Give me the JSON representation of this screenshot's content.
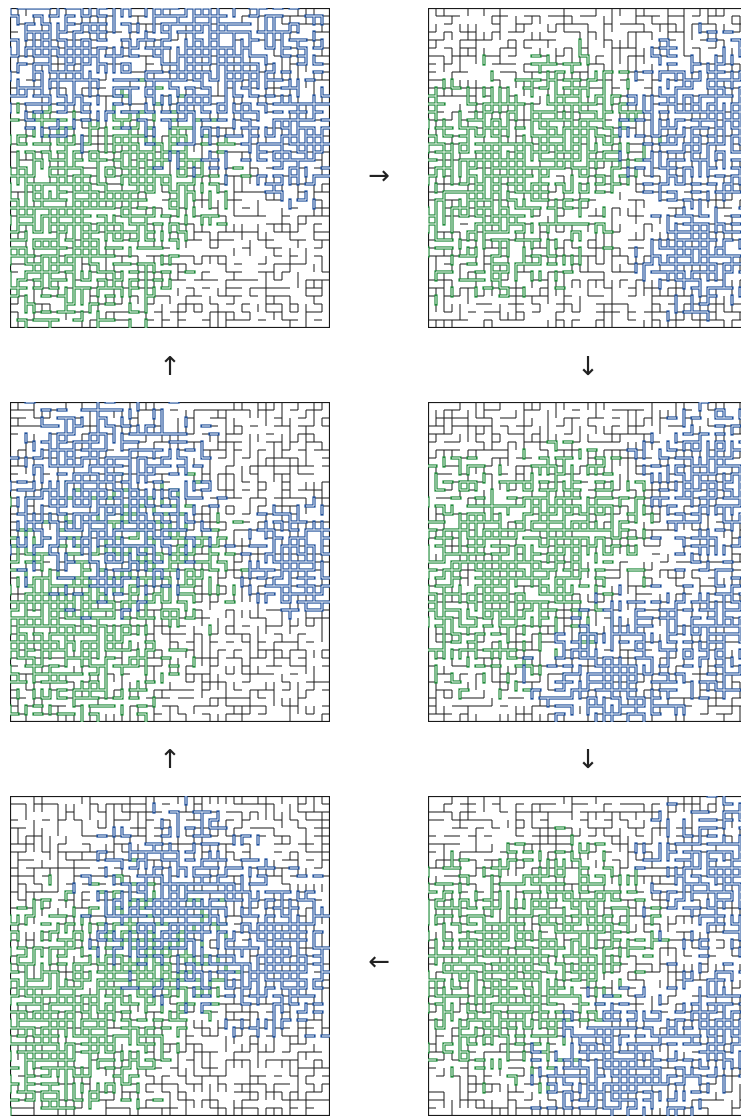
{
  "colors": {
    "green": "#1f8a3a",
    "blue": "#1f4f9a",
    "grid": "#1a1a1a",
    "background": "#ffffff"
  },
  "arrows": {
    "top_right": "→",
    "left_up_1": "↑",
    "right_down_1": "↓",
    "left_up_2": "↑",
    "right_down_2": "↓",
    "bottom_left": "←"
  },
  "panels": [
    {
      "id": "panel-1",
      "seed": 11,
      "green_quadrant": "left-lower",
      "blue_quadrant": "top"
    },
    {
      "id": "panel-2",
      "seed": 23,
      "green_quadrant": "left-center",
      "blue_quadrant": "right"
    },
    {
      "id": "panel-3",
      "seed": 37,
      "green_quadrant": "left-lower",
      "blue_quadrant": "upper-left"
    },
    {
      "id": "panel-4",
      "seed": 41,
      "green_quadrant": "left-center",
      "blue_quadrant": "right-bottom"
    },
    {
      "id": "panel-5",
      "seed": 53,
      "green_quadrant": "left-lower",
      "blue_quadrant": "center-right"
    },
    {
      "id": "panel-6",
      "seed": 67,
      "green_quadrant": "left-center",
      "blue_quadrant": "right-bottom"
    }
  ]
}
